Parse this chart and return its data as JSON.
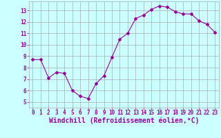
{
  "x": [
    0,
    1,
    2,
    3,
    4,
    5,
    6,
    7,
    8,
    9,
    10,
    11,
    12,
    13,
    14,
    15,
    16,
    17,
    18,
    19,
    20,
    21,
    22,
    23
  ],
  "y": [
    8.7,
    8.7,
    7.1,
    7.6,
    7.5,
    6.0,
    5.5,
    5.3,
    6.6,
    7.3,
    8.9,
    10.5,
    11.0,
    12.3,
    12.6,
    13.1,
    13.4,
    13.3,
    12.9,
    12.7,
    12.7,
    12.1,
    11.8,
    11.1
  ],
  "line_color": "#990099",
  "marker": "D",
  "marker_size": 2.0,
  "bg_color": "#ccffff",
  "grid_color": "#aaaaaa",
  "xlabel": "Windchill (Refroidissement éolien,°C)",
  "xlabel_color": "#990099",
  "xlim": [
    -0.5,
    23.5
  ],
  "ylim": [
    4.5,
    13.8
  ],
  "yticks": [
    5,
    6,
    7,
    8,
    9,
    10,
    11,
    12,
    13
  ],
  "xticks": [
    0,
    1,
    2,
    3,
    4,
    5,
    6,
    7,
    8,
    9,
    10,
    11,
    12,
    13,
    14,
    15,
    16,
    17,
    18,
    19,
    20,
    21,
    22,
    23
  ],
  "tick_color": "#990099",
  "tick_fontsize": 5.5,
  "xlabel_fontsize": 7.0,
  "linewidth": 0.8
}
